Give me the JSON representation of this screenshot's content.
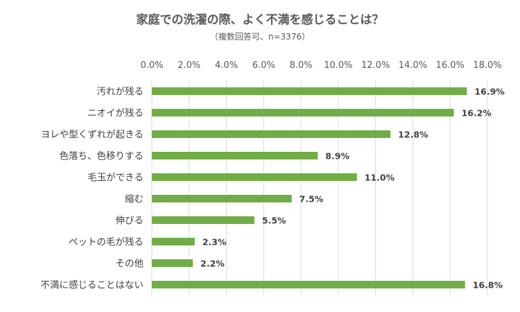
{
  "chart_data": {
    "type": "bar",
    "orientation": "horizontal",
    "title": "家庭での洗濯の際、よく不満を感じることは？",
    "subtitle": "（複数回答可、n=3376）",
    "categories": [
      "汚れが残る",
      "ニオイが残る",
      "ヨレや型くずれが起きる",
      "色落ち、色移りする",
      "毛玉ができる",
      "縮む",
      "伸びる",
      "ペットの毛が残る",
      "その他",
      "不満に感じることはない"
    ],
    "values": [
      16.9,
      16.2,
      12.8,
      8.9,
      11.0,
      7.5,
      5.5,
      2.3,
      2.2,
      16.8
    ],
    "value_labels": [
      "16.9%",
      "16.2%",
      "12.8%",
      "8.9%",
      "11.0%",
      "7.5%",
      "5.5%",
      "2.3%",
      "2.2%",
      "16.8%"
    ],
    "x_ticks": [
      "0.0%",
      "2.0%",
      "4.0%",
      "6.0%",
      "8.0%",
      "10.0%",
      "12.0%",
      "14.0%",
      "16.0%",
      "18.0%"
    ],
    "xlim": [
      0,
      18
    ],
    "x_axis_position": "top",
    "grid": true,
    "legend": false,
    "bar_color": "#70AD47",
    "grid_color": "#D9D9D9"
  }
}
